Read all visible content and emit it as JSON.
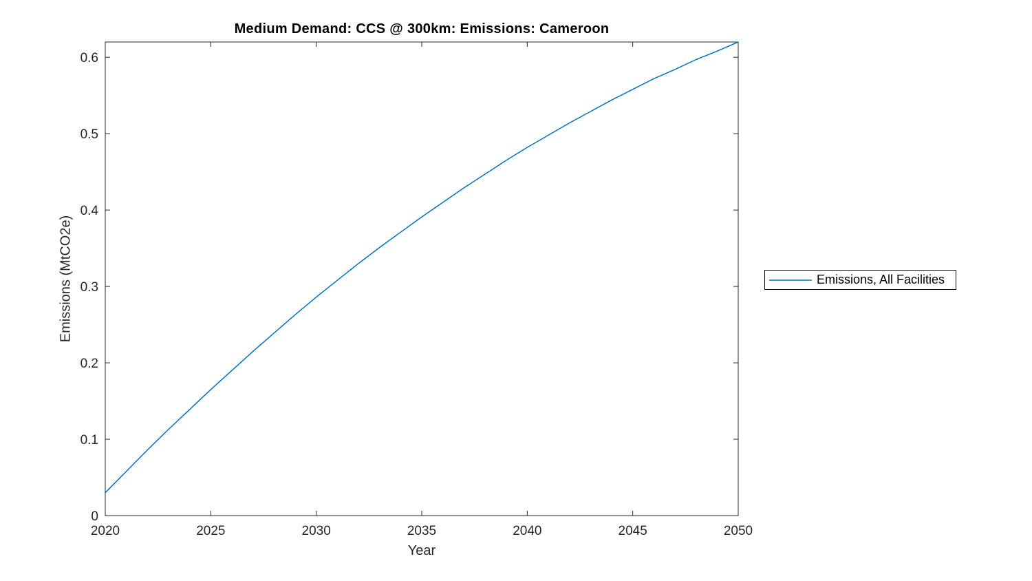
{
  "chart_data": {
    "type": "line",
    "title": "Medium Demand: CCS @ 300km: Emissions: Cameroon",
    "xlabel": "Year",
    "ylabel": "Emissions (MtCO2e)",
    "x": [
      2020,
      2021,
      2022,
      2023,
      2024,
      2025,
      2026,
      2027,
      2028,
      2029,
      2030,
      2031,
      2032,
      2033,
      2034,
      2035,
      2036,
      2037,
      2038,
      2039,
      2040,
      2041,
      2042,
      2043,
      2044,
      2045,
      2046,
      2047,
      2048,
      2049,
      2050
    ],
    "series": [
      {
        "name": "Emissions, All Facilities",
        "color": "#0072BD",
        "values": [
          0.03,
          0.058,
          0.086,
          0.113,
          0.139,
          0.165,
          0.19,
          0.215,
          0.239,
          0.263,
          0.286,
          0.308,
          0.33,
          0.351,
          0.371,
          0.391,
          0.41,
          0.429,
          0.447,
          0.465,
          0.482,
          0.498,
          0.514,
          0.529,
          0.544,
          0.558,
          0.572,
          0.584,
          0.597,
          0.608,
          0.62
        ]
      }
    ],
    "xlim": [
      2020,
      2050
    ],
    "ylim": [
      0,
      0.62
    ],
    "xticks": [
      "2020",
      "2025",
      "2030",
      "2035",
      "2040",
      "2045",
      "2050"
    ],
    "yticks": [
      "0",
      "0.1",
      "0.2",
      "0.3",
      "0.4",
      "0.5",
      "0.6"
    ],
    "grid": false,
    "legend_position": "right-outside",
    "axis_color": "#262626",
    "background_color": "#ffffff"
  }
}
